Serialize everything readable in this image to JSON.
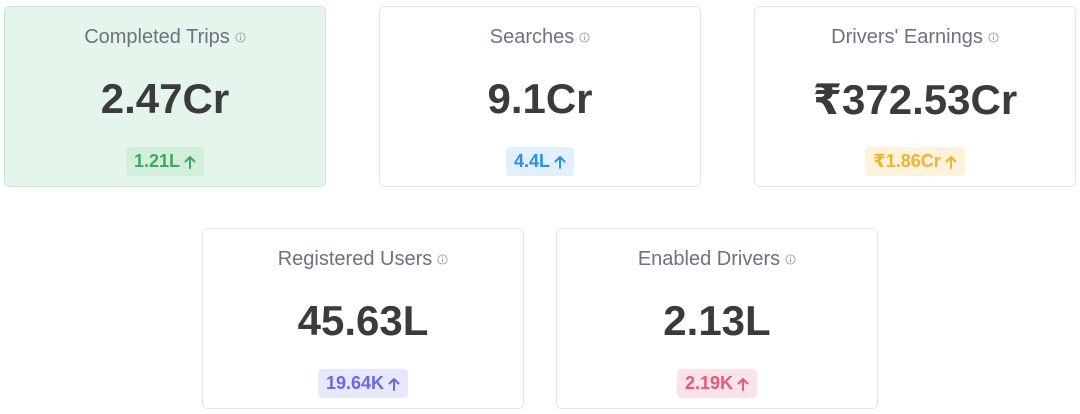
{
  "cards": [
    {
      "title": "Completed Trips",
      "value": "2.47Cr",
      "change": "1.21L"
    },
    {
      "title": "Searches",
      "value": "9.1Cr",
      "change": "4.4L"
    },
    {
      "title": "Drivers' Earnings",
      "value": "₹372.53Cr",
      "change": "₹1.86Cr"
    },
    {
      "title": "Registered Users",
      "value": "45.63L",
      "change": "19.64K"
    },
    {
      "title": "Enabled Drivers",
      "value": "2.13L",
      "change": "2.19K"
    }
  ]
}
